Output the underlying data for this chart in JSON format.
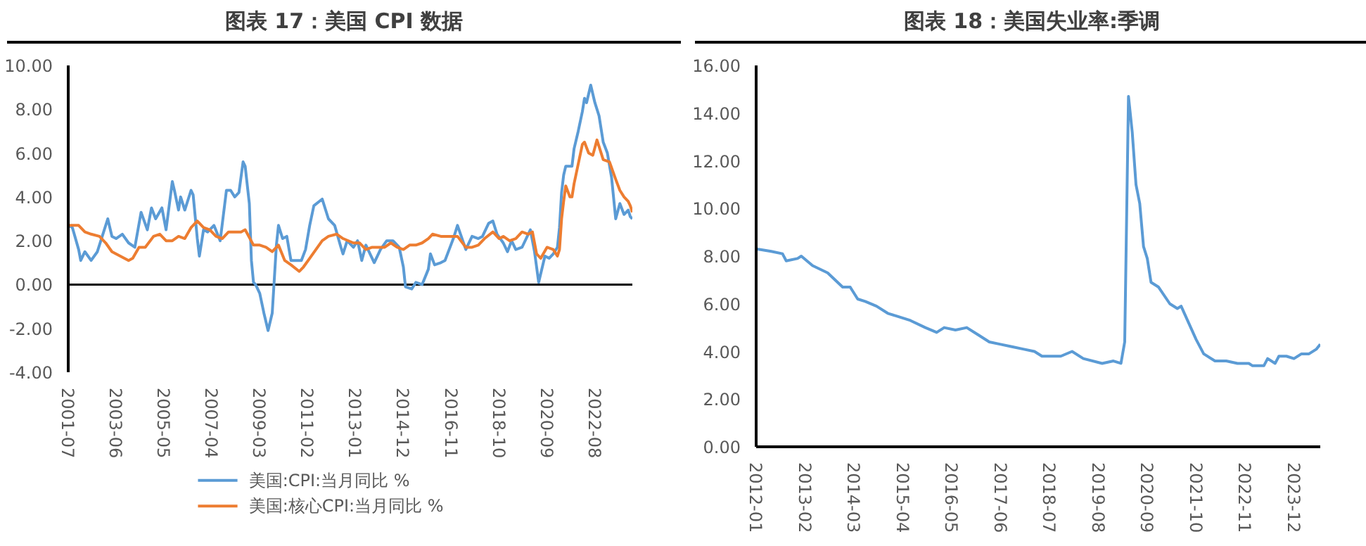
{
  "chart_data": [
    {
      "type": "line",
      "title": "图表 17：美国 CPI 数据",
      "x": [
        "2001-07",
        "2001-09",
        "2001-12",
        "2002-01",
        "2002-03",
        "2002-06",
        "2002-09",
        "2002-12",
        "2003-02",
        "2003-04",
        "2003-06",
        "2003-09",
        "2003-12",
        "2004-03",
        "2004-06",
        "2004-09",
        "2004-11",
        "2005-01",
        "2005-04",
        "2005-06",
        "2005-09",
        "2005-10",
        "2005-12",
        "2006-01",
        "2006-03",
        "2006-06",
        "2006-07",
        "2006-09",
        "2006-10",
        "2006-12",
        "2007-02",
        "2007-05",
        "2007-08",
        "2007-11",
        "2008-01",
        "2008-03",
        "2008-05",
        "2008-07",
        "2008-08",
        "2008-10",
        "2008-11",
        "2008-12",
        "2009-01",
        "2009-03",
        "2009-05",
        "2009-07",
        "2009-09",
        "2009-11",
        "2009-12",
        "2010-02",
        "2010-04",
        "2010-06",
        "2010-09",
        "2010-11",
        "2011-01",
        "2011-03",
        "2011-05",
        "2011-09",
        "2011-12",
        "2012-03",
        "2012-06",
        "2012-07",
        "2012-09",
        "2012-12",
        "2013-02",
        "2013-04",
        "2013-06",
        "2013-10",
        "2014-01",
        "2014-04",
        "2014-07",
        "2014-10",
        "2014-12",
        "2015-01",
        "2015-04",
        "2015-06",
        "2015-09",
        "2015-12",
        "2016-01",
        "2016-03",
        "2016-06",
        "2016-08",
        "2016-10",
        "2016-12",
        "2017-02",
        "2017-06",
        "2017-09",
        "2017-12",
        "2018-02",
        "2018-05",
        "2018-07",
        "2018-09",
        "2018-12",
        "2019-02",
        "2019-04",
        "2019-06",
        "2019-09",
        "2019-12",
        "2020-01",
        "2020-03",
        "2020-05",
        "2020-08",
        "2020-10",
        "2020-12",
        "2021-02",
        "2021-03",
        "2021-04",
        "2021-05",
        "2021-06",
        "2021-09",
        "2021-10",
        "2021-12",
        "2022-02",
        "2022-03",
        "2022-04",
        "2022-06",
        "2022-08",
        "2022-10",
        "2022-12",
        "2023-02",
        "2023-04",
        "2023-06",
        "2023-08",
        "2023-10",
        "2023-12",
        "2024-01",
        "2024-02"
      ],
      "series": [
        {
          "name": "美国:CPI:当月同比 %",
          "color": "#5b9bd5",
          "values": [
            2.7,
            2.6,
            1.6,
            1.1,
            1.5,
            1.1,
            1.5,
            2.4,
            3.0,
            2.2,
            2.1,
            2.3,
            1.9,
            1.7,
            3.3,
            2.5,
            3.5,
            3.0,
            3.5,
            2.5,
            4.7,
            4.3,
            3.4,
            4.0,
            3.4,
            4.3,
            4.1,
            2.1,
            1.3,
            2.5,
            2.4,
            2.7,
            2.0,
            4.3,
            4.3,
            4.0,
            4.2,
            5.6,
            5.4,
            3.7,
            1.1,
            0.1,
            0.0,
            -0.4,
            -1.3,
            -2.1,
            -1.3,
            1.8,
            2.7,
            2.1,
            2.2,
            1.1,
            1.1,
            1.1,
            1.6,
            2.7,
            3.6,
            3.9,
            3.0,
            2.7,
            1.7,
            1.4,
            2.0,
            1.7,
            2.0,
            1.1,
            1.8,
            1.0,
            1.6,
            2.0,
            2.0,
            1.7,
            0.8,
            -0.1,
            -0.2,
            0.1,
            0.0,
            0.7,
            1.4,
            0.9,
            1.0,
            1.1,
            1.6,
            2.1,
            2.7,
            1.6,
            2.2,
            2.1,
            2.2,
            2.8,
            2.9,
            2.3,
            1.9,
            1.5,
            2.0,
            1.6,
            1.7,
            2.3,
            2.5,
            1.5,
            0.1,
            1.3,
            1.2,
            1.4,
            1.7,
            2.6,
            4.2,
            5.0,
            5.4,
            5.4,
            6.2,
            7.0,
            7.9,
            8.5,
            8.3,
            9.1,
            8.3,
            7.7,
            6.5,
            6.0,
            4.9,
            3.0,
            3.7,
            3.2,
            3.4,
            3.1,
            3.0
          ]
        },
        {
          "name": "美国:核心CPI:当月同比 %",
          "color": "#ed7d31",
          "x": [
            "2001-07",
            "2001-12",
            "2002-03",
            "2002-06",
            "2002-10",
            "2003-01",
            "2003-04",
            "2003-08",
            "2003-12",
            "2004-02",
            "2004-05",
            "2004-08",
            "2004-12",
            "2005-03",
            "2005-06",
            "2005-09",
            "2005-12",
            "2006-03",
            "2006-06",
            "2006-09",
            "2006-12",
            "2007-03",
            "2007-06",
            "2007-09",
            "2007-12",
            "2008-03",
            "2008-06",
            "2008-08",
            "2008-12",
            "2009-03",
            "2009-06",
            "2009-09",
            "2009-12",
            "2010-03",
            "2010-06",
            "2010-10",
            "2010-12",
            "2011-03",
            "2011-06",
            "2011-09",
            "2011-12",
            "2012-04",
            "2012-07",
            "2012-12",
            "2013-03",
            "2013-06",
            "2013-09",
            "2013-12",
            "2014-03",
            "2014-06",
            "2014-09",
            "2014-12",
            "2015-03",
            "2015-06",
            "2015-09",
            "2015-12",
            "2016-02",
            "2016-06",
            "2016-09",
            "2016-12",
            "2017-02",
            "2017-06",
            "2017-09",
            "2017-12",
            "2018-03",
            "2018-07",
            "2018-10",
            "2018-12",
            "2019-03",
            "2019-06",
            "2019-09",
            "2019-12",
            "2020-02",
            "2020-04",
            "2020-06",
            "2020-09",
            "2020-12",
            "2021-02",
            "2021-03",
            "2021-04",
            "2021-05",
            "2021-06",
            "2021-08",
            "2021-09",
            "2021-10",
            "2021-12",
            "2022-02",
            "2022-03",
            "2022-05",
            "2022-07",
            "2022-09",
            "2022-12",
            "2023-03",
            "2023-06",
            "2023-08",
            "2023-10",
            "2023-12",
            "2024-01",
            "2024-02"
          ],
          "values": [
            2.7,
            2.7,
            2.4,
            2.3,
            2.2,
            1.9,
            1.5,
            1.3,
            1.1,
            1.2,
            1.7,
            1.7,
            2.2,
            2.3,
            2.0,
            2.0,
            2.2,
            2.1,
            2.6,
            2.9,
            2.6,
            2.5,
            2.2,
            2.1,
            2.4,
            2.4,
            2.4,
            2.5,
            1.8,
            1.8,
            1.7,
            1.5,
            1.8,
            1.1,
            0.9,
            0.6,
            0.8,
            1.2,
            1.6,
            2.0,
            2.2,
            2.3,
            2.1,
            1.9,
            1.9,
            1.6,
            1.7,
            1.7,
            1.7,
            1.9,
            1.7,
            1.6,
            1.8,
            1.8,
            1.9,
            2.1,
            2.3,
            2.2,
            2.2,
            2.2,
            2.2,
            1.7,
            1.7,
            1.8,
            2.1,
            2.4,
            2.1,
            2.2,
            2.0,
            2.1,
            2.4,
            2.3,
            2.4,
            1.4,
            1.2,
            1.7,
            1.6,
            1.3,
            1.6,
            3.0,
            3.8,
            4.5,
            4.0,
            4.0,
            4.6,
            5.5,
            6.4,
            6.5,
            6.0,
            5.9,
            6.6,
            5.7,
            5.6,
            4.8,
            4.3,
            4.0,
            3.8,
            3.6,
            3.3
          ]
        }
      ],
      "xlim": [
        "2001-07",
        "2024-02"
      ],
      "xticks": [
        "2001-07",
        "2003-06",
        "2005-05",
        "2007-04",
        "2009-03",
        "2011-02",
        "2013-01",
        "2014-12",
        "2016-11",
        "2018-10",
        "2020-09",
        "2022-08"
      ],
      "ylim": [
        -4,
        10
      ],
      "yticks": [
        {
          "value": -4,
          "label": "-4.00"
        },
        {
          "value": -2,
          "label": "-2.00"
        },
        {
          "value": 0,
          "label": "0.00"
        },
        {
          "value": 2,
          "label": "2.00"
        },
        {
          "value": 4,
          "label": "4.00"
        },
        {
          "value": 6,
          "label": "6.00"
        },
        {
          "value": 8,
          "label": "8.00"
        },
        {
          "value": 10,
          "label": "10.00"
        }
      ],
      "ref_lines": [
        {
          "axis": "y",
          "value": 0,
          "color": "#000000"
        }
      ],
      "grid": false,
      "legend": "bottom"
    },
    {
      "type": "line",
      "title": "图表 18：美国失业率:季调",
      "x": [
        "2012-01",
        "2012-05",
        "2012-08",
        "2012-09",
        "2012-12",
        "2013-01",
        "2013-04",
        "2013-08",
        "2013-12",
        "2014-02",
        "2014-04",
        "2014-06",
        "2014-09",
        "2014-12",
        "2015-02",
        "2015-06",
        "2015-10",
        "2016-01",
        "2016-03",
        "2016-06",
        "2016-09",
        "2016-12",
        "2017-03",
        "2017-06",
        "2017-09",
        "2017-12",
        "2018-03",
        "2018-05",
        "2018-08",
        "2018-10",
        "2019-01",
        "2019-04",
        "2019-09",
        "2019-12",
        "2020-02",
        "2020-03",
        "2020-04",
        "2020-05",
        "2020-06",
        "2020-07",
        "2020-08",
        "2020-09",
        "2020-10",
        "2020-12",
        "2021-03",
        "2021-05",
        "2021-06",
        "2021-08",
        "2021-10",
        "2021-12",
        "2022-03",
        "2022-06",
        "2022-09",
        "2022-12",
        "2023-01",
        "2023-04",
        "2023-05",
        "2023-07",
        "2023-08",
        "2023-10",
        "2023-12",
        "2024-02",
        "2024-04",
        "2024-06",
        "2024-07"
      ],
      "series": [
        {
          "color": "#5b9bd5",
          "values": [
            8.3,
            8.2,
            8.1,
            7.8,
            7.9,
            8.0,
            7.6,
            7.3,
            6.7,
            6.7,
            6.2,
            6.1,
            5.9,
            5.6,
            5.5,
            5.3,
            5.0,
            4.8,
            5.0,
            4.9,
            5.0,
            4.7,
            4.4,
            4.3,
            4.2,
            4.1,
            4.0,
            3.8,
            3.8,
            3.8,
            4.0,
            3.7,
            3.5,
            3.6,
            3.5,
            4.4,
            14.7,
            13.2,
            11.0,
            10.2,
            8.4,
            7.9,
            6.9,
            6.7,
            6.0,
            5.8,
            5.9,
            5.2,
            4.5,
            3.9,
            3.6,
            3.6,
            3.5,
            3.5,
            3.4,
            3.4,
            3.7,
            3.5,
            3.8,
            3.8,
            3.7,
            3.9,
            3.9,
            4.1,
            4.3
          ]
        }
      ],
      "xlim": [
        "2012-01",
        "2024-07"
      ],
      "xticks": [
        "2012-01",
        "2013-02",
        "2014-03",
        "2015-04",
        "2016-05",
        "2017-06",
        "2018-07",
        "2019-08",
        "2020-09",
        "2021-10",
        "2022-11",
        "2023-12"
      ],
      "ylim": [
        0,
        16
      ],
      "yticks": [
        {
          "value": 0,
          "label": "0.00"
        },
        {
          "value": 2,
          "label": "2.00"
        },
        {
          "value": 4,
          "label": "4.00"
        },
        {
          "value": 6,
          "label": "6.00"
        },
        {
          "value": 8,
          "label": "8.00"
        },
        {
          "value": 10,
          "label": "10.00"
        },
        {
          "value": 12,
          "label": "12.00"
        },
        {
          "value": 14,
          "label": "14.00"
        },
        {
          "value": 16,
          "label": "16.00"
        }
      ],
      "grid": false,
      "legend": false
    }
  ]
}
